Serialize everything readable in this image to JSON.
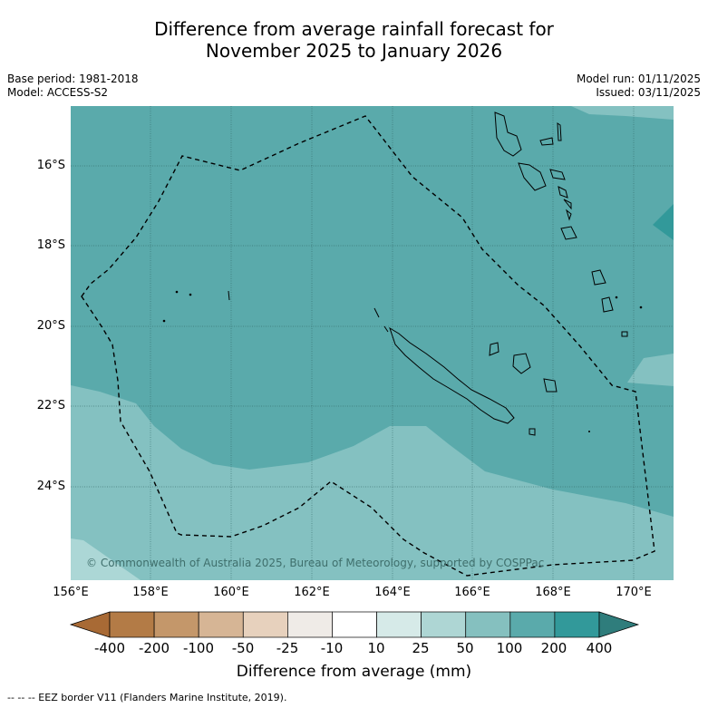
{
  "title_line1": "Difference from average rainfall forecast for",
  "title_line2": "November 2025 to January 2026",
  "base_period": "Base period: 1981-2018",
  "model": "Model: ACCESS-S2",
  "model_run": "Model run: 01/11/2025",
  "issued": "Issued: 03/11/2025",
  "lat_labels": [
    "16°S",
    "18°S",
    "20°S",
    "22°S",
    "24°S"
  ],
  "lon_labels": [
    "156°E",
    "158°E",
    "160°E",
    "162°E",
    "164°E",
    "166°E",
    "168°E",
    "170°E"
  ],
  "copyright": "© Commonwealth of Australia 2025, Bureau of Meteorology, supported by COSPPac",
  "colorbar": {
    "labels": [
      "-400",
      "-200",
      "-100",
      "-50",
      "-25",
      "-10",
      "10",
      "25",
      "50",
      "100",
      "200",
      "400"
    ],
    "colors": [
      "#a86a35",
      "#b37b46",
      "#c4976a",
      "#d6b595",
      "#e7d1bd",
      "#efebe7",
      "#ffffff",
      "#d6eae8",
      "#aed6d4",
      "#85c0bf",
      "#5aaaab",
      "#32999a",
      "#2f7d7c"
    ],
    "title": "Difference from average (mm)"
  },
  "legend_note": "--  --  -- EEZ border V11 (Flanders Marine Institute, 2019).",
  "map_colors": {
    "band_25_50": "#84c1c1",
    "band_50_100": "#5aaaab",
    "band_100_200": "#32999a",
    "band_10_25": "#acd7d6"
  }
}
